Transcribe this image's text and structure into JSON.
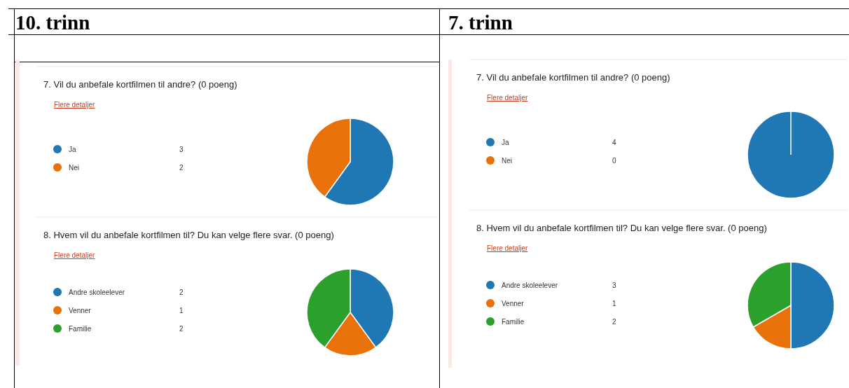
{
  "chart_data": [
    {
      "type": "pie",
      "title": "7.  Vil du anbefale kortfilmen til andre? (0 poeng)",
      "annotations": [
        "10. trinn",
        "Flere detaljer"
      ],
      "categories": [
        "Ja",
        "Nei"
      ],
      "values": [
        3,
        2
      ],
      "value_labels": [
        "3",
        "2"
      ],
      "colors": [
        "#1f77b4",
        "#e8710a"
      ],
      "legend": "left"
    },
    {
      "type": "pie",
      "title": "8.  Hvem vil du anbefale kortfilmen til? Du kan velge flere svar. (0 poeng)",
      "annotations": [
        "Flere detaljer"
      ],
      "categories": [
        "Andre skoleelever",
        "Venner",
        "Familie"
      ],
      "values": [
        2,
        1,
        2
      ],
      "value_labels": [
        "2",
        "1",
        "2"
      ],
      "colors": [
        "#1f77b4",
        "#e8710a",
        "#2ca02c"
      ],
      "legend": "left"
    },
    {
      "type": "pie",
      "title": "7.  Vil du anbefale kortfilmen til andre? (0 poeng)",
      "annotations": [
        "7. trinn",
        "Flere detaljer"
      ],
      "categories": [
        "Ja",
        "Nei"
      ],
      "values": [
        4,
        0
      ],
      "value_labels": [
        "4",
        "0"
      ],
      "colors": [
        "#1f77b4",
        "#e8710a"
      ],
      "legend": "left"
    },
    {
      "type": "pie",
      "title": "8.  Hvem vil du anbefale kortfilmen til? Du kan velge flere svar. (0 poeng)",
      "annotations": [
        "Flere detaljer"
      ],
      "categories": [
        "Andre skoleelever",
        "Venner",
        "Familie"
      ],
      "values": [
        3,
        1,
        2
      ],
      "value_labels": [
        "3",
        "1",
        "2"
      ],
      "colors": [
        "#1f77b4",
        "#e8710a",
        "#2ca02c"
      ],
      "legend": "left"
    }
  ]
}
